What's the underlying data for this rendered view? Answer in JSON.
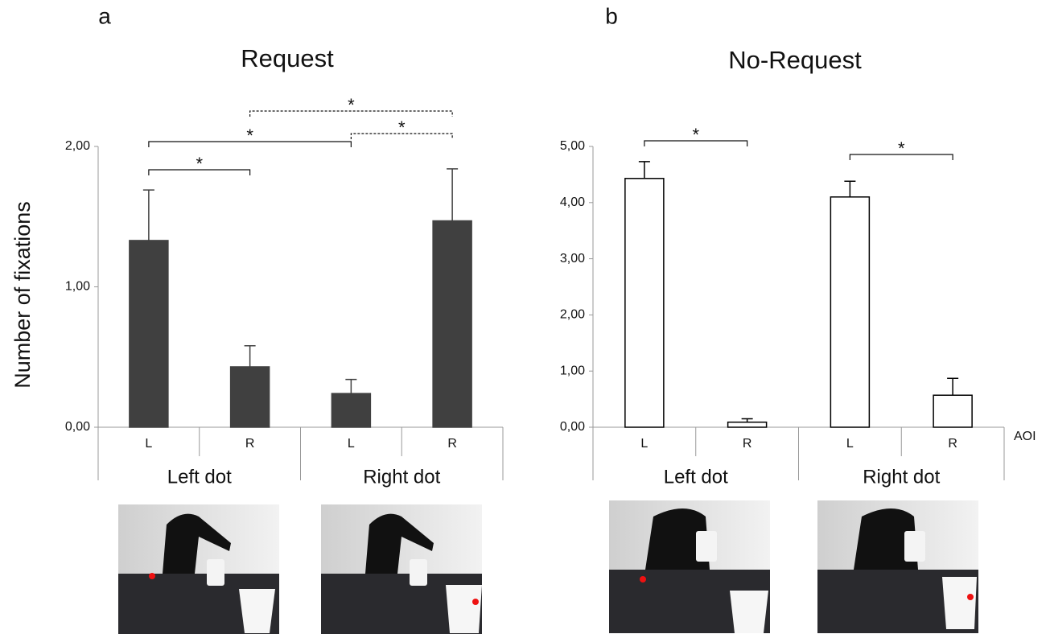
{
  "chart_data": [
    {
      "type": "bar",
      "panel": "a",
      "title": "Request",
      "y_label": "Number of fixations",
      "categories": [
        "L",
        "R",
        "L",
        "R"
      ],
      "groups": [
        "Left dot",
        "Right dot"
      ],
      "values": [
        1.33,
        0.43,
        0.24,
        1.47
      ],
      "errors": [
        0.36,
        0.15,
        0.1,
        0.37
      ],
      "color": "#404040",
      "edge_color": "#404040",
      "ylim": [
        0,
        2
      ],
      "yticks": [
        {
          "value": 0,
          "label": "0,00"
        },
        {
          "value": 1,
          "label": "1,00"
        },
        {
          "value": 2,
          "label": "2,00"
        }
      ],
      "comparisons": [
        {
          "from": 0,
          "to": 1,
          "label": "*",
          "style": "solid"
        },
        {
          "from": 0,
          "to": 2,
          "label": "*",
          "style": "solid"
        },
        {
          "from": 2,
          "to": 3,
          "label": "*",
          "style": "dashed"
        },
        {
          "from": 1,
          "to": 3,
          "label": "*",
          "style": "dashed"
        }
      ]
    },
    {
      "type": "bar",
      "panel": "b",
      "title": "No-Request",
      "x_label": "AOI",
      "categories": [
        "L",
        "R",
        "L",
        "R"
      ],
      "groups": [
        "Left dot",
        "Right dot"
      ],
      "values": [
        4.43,
        0.09,
        4.1,
        0.57
      ],
      "errors": [
        0.3,
        0.06,
        0.28,
        0.3
      ],
      "color": "#ffffff",
      "edge_color": "#000000",
      "ylim": [
        0,
        5
      ],
      "yticks": [
        {
          "value": 0,
          "label": "0,00"
        },
        {
          "value": 1,
          "label": "1,00"
        },
        {
          "value": 2,
          "label": "2,00"
        },
        {
          "value": 3,
          "label": "3,00"
        },
        {
          "value": 4,
          "label": "4,00"
        },
        {
          "value": 5,
          "label": "5,00"
        }
      ],
      "comparisons": [
        {
          "from": 0,
          "to": 1,
          "label": "*",
          "style": "solid"
        },
        {
          "from": 2,
          "to": 3,
          "label": "*",
          "style": "solid"
        }
      ]
    }
  ]
}
